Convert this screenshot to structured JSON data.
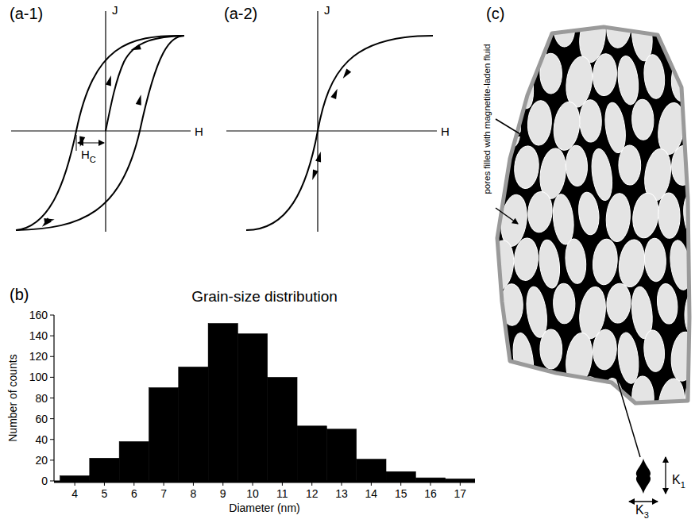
{
  "chart_data": {
    "type": "histogram",
    "title": "Grain-size distribution",
    "x_label": "Diameter (nm)",
    "y_label": "Number of counts",
    "bins": [
      3.5,
      4.5,
      5.5,
      6.5,
      7.5,
      8.5,
      9.5,
      10.5,
      11.5,
      12.5,
      13.5,
      14.5,
      15.5,
      16.5,
      17.5
    ],
    "values": [
      5,
      22,
      38,
      90,
      110,
      152,
      142,
      100,
      53,
      50,
      21,
      9,
      3,
      2
    ],
    "color": "#000000",
    "xlim": [
      3.3,
      17.5
    ],
    "ylim": [
      0,
      160
    ],
    "xticks": [
      4,
      5,
      6,
      7,
      8,
      9,
      10,
      11,
      12,
      13,
      14,
      15,
      16,
      17
    ],
    "yticks": [
      0,
      20,
      40,
      60,
      80,
      100,
      120,
      140,
      160
    ],
    "grid": false
  },
  "panels": {
    "a1": {
      "letter": "(a-1)",
      "y_axis": "J",
      "x_axis": "H",
      "coercivity": {
        "main": "H",
        "sub": "C"
      }
    },
    "a2": {
      "letter": "(a-2)",
      "y_axis": "J",
      "x_axis": "H"
    },
    "b": {
      "letter": "(b)"
    },
    "c": {
      "letter": "(c)",
      "pores_label": "pores filled with magnetite-laden fluid",
      "k1": {
        "main": "K",
        "sub": "1"
      },
      "k3": {
        "main": "K",
        "sub": "3"
      }
    }
  }
}
